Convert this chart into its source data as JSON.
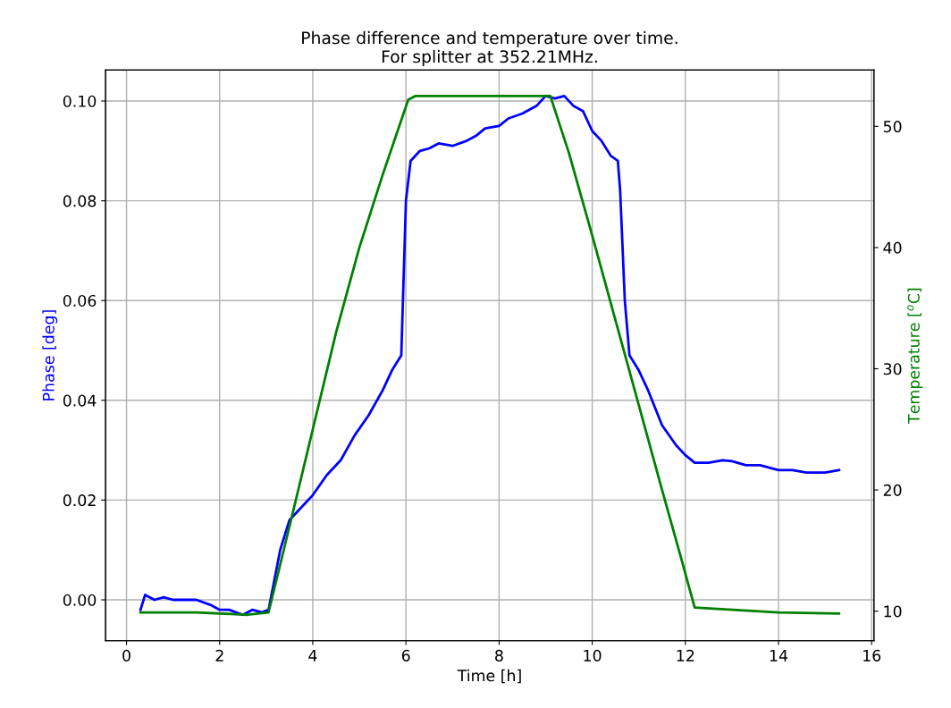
{
  "chart_data": {
    "type": "line",
    "title": "Phase difference and temperature over time.\nFor splitter at 352.21MHz.",
    "xlabel": "Time [h]",
    "ylabel": "Phase [deg]",
    "y2label": "Temperature [$^{o}$C]",
    "grid": true,
    "xlim": [
      -0.45,
      16.05
    ],
    "xticks": [
      0,
      2,
      4,
      6,
      8,
      10,
      12,
      14,
      16
    ],
    "ylim": [
      -0.0082,
      0.1062
    ],
    "yticks": [
      {
        "value": 0,
        "label": "0.00"
      },
      {
        "value": 0.02,
        "label": "0.02"
      },
      {
        "value": 0.04,
        "label": "0.04"
      },
      {
        "value": 0.06,
        "label": "0.06"
      },
      {
        "value": 0.08,
        "label": "0.08"
      },
      {
        "value": 0.1,
        "label": "0.10"
      }
    ],
    "y2lim": [
      7.56,
      54.64
    ],
    "y2ticks": [
      10,
      20,
      30,
      40,
      50
    ],
    "series": [
      {
        "color": "#0000ff",
        "x": [
          0.3,
          0.4,
          0.6,
          0.8,
          1.0,
          1.2,
          1.5,
          1.8,
          2.0,
          2.2,
          2.5,
          2.7,
          2.9,
          3.05,
          3.3,
          3.5,
          3.8,
          4.0,
          4.3,
          4.6,
          4.9,
          5.2,
          5.5,
          5.7,
          5.9,
          6.0,
          6.1,
          6.3,
          6.5,
          6.7,
          7.0,
          7.3,
          7.5,
          7.7,
          8.0,
          8.2,
          8.5,
          8.8,
          9.0,
          9.2,
          9.4,
          9.6,
          9.8,
          10.0,
          10.2,
          10.4,
          10.55,
          10.6,
          10.7,
          10.8,
          11.0,
          11.2,
          11.5,
          11.8,
          12.0,
          12.2,
          12.5,
          12.8,
          13.0,
          13.3,
          13.6,
          14.0,
          14.3,
          14.6,
          15.0,
          15.3
        ],
        "values": [
          -0.002,
          0.001,
          0.0,
          0.0005,
          0.0,
          0.0,
          0.0,
          -0.001,
          -0.002,
          -0.002,
          -0.003,
          -0.002,
          -0.0025,
          -0.002,
          0.01,
          0.016,
          0.019,
          0.021,
          0.025,
          0.028,
          0.033,
          0.037,
          0.042,
          0.046,
          0.049,
          0.08,
          0.088,
          0.09,
          0.0905,
          0.0915,
          0.091,
          0.092,
          0.093,
          0.0945,
          0.095,
          0.0965,
          0.0975,
          0.099,
          0.101,
          0.1005,
          0.101,
          0.099,
          0.098,
          0.094,
          0.092,
          0.089,
          0.088,
          0.082,
          0.06,
          0.049,
          0.046,
          0.042,
          0.035,
          0.031,
          0.029,
          0.0275,
          0.0275,
          0.028,
          0.0278,
          0.027,
          0.027,
          0.026,
          0.026,
          0.0255,
          0.0255,
          0.026
        ]
      },
      {
        "color": "#008000",
        "axis": "y2",
        "x": [
          0.3,
          1.5,
          2.6,
          3.05,
          3.5,
          4.0,
          4.5,
          5.0,
          5.5,
          6.05,
          6.2,
          9.1,
          9.5,
          10.0,
          10.5,
          11.0,
          11.5,
          11.9,
          12.2,
          14.0,
          15.3
        ],
        "values": [
          9.9,
          9.9,
          9.7,
          9.9,
          17,
          25,
          33,
          40,
          46,
          52.2,
          52.5,
          52.5,
          47.8,
          41,
          34,
          27,
          20,
          14.5,
          10.3,
          9.9,
          9.8
        ]
      }
    ]
  }
}
